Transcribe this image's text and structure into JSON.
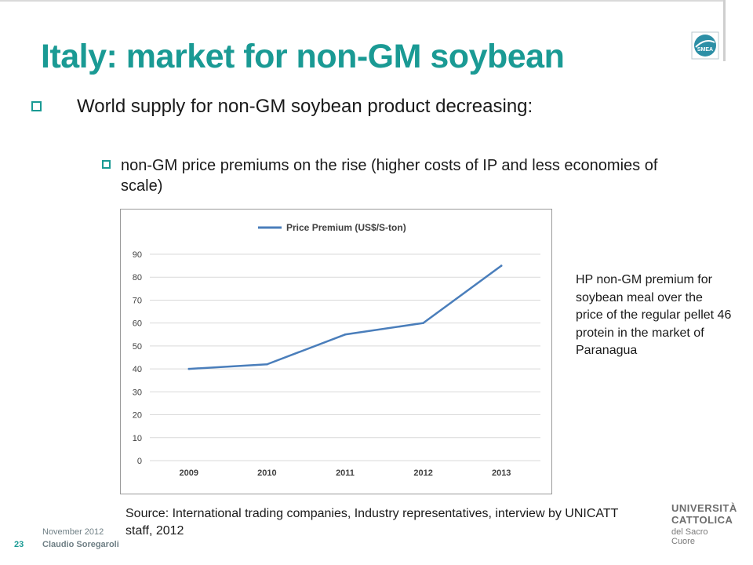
{
  "slide": {
    "title": "Italy: market for non-GM soybean",
    "bullet_1": "World supply for non-GM soybean product decreasing:",
    "bullet_2": "non-GM price premiums on the rise (higher costs of IP and less economies of scale)",
    "side_note": "HP non-GM premium for soybean meal over the price of the regular pellet 46 protein in the market of Paranagua",
    "source": "Source: International trading companies, Industry representatives, interview by UNICATT staff, 2012"
  },
  "footer": {
    "date": "November 2012",
    "page_number": "23",
    "author": "Claudio Soregaroli"
  },
  "logos": {
    "corner_logo_text": "SMEA",
    "university_line1": "UNIVERSITÀ",
    "university_line2": "CATTOLICA",
    "university_line3": "del Sacro Cuore"
  },
  "colors": {
    "accent": "#1a9a94",
    "series_line": "#4a7ebb",
    "grid": "#d9d9d9"
  },
  "chart_data": {
    "type": "line",
    "title": "",
    "xlabel": "",
    "ylabel": "",
    "categories": [
      "2009",
      "2010",
      "2011",
      "2012",
      "2013"
    ],
    "series": [
      {
        "name": "Price Premium (US$/S-ton)",
        "values": [
          40,
          42,
          55,
          60,
          85
        ]
      }
    ],
    "ylim": [
      0,
      90
    ],
    "yticks": [
      0,
      10,
      20,
      30,
      40,
      50,
      60,
      70,
      80,
      90
    ],
    "grid": true,
    "legend_position": "top"
  }
}
